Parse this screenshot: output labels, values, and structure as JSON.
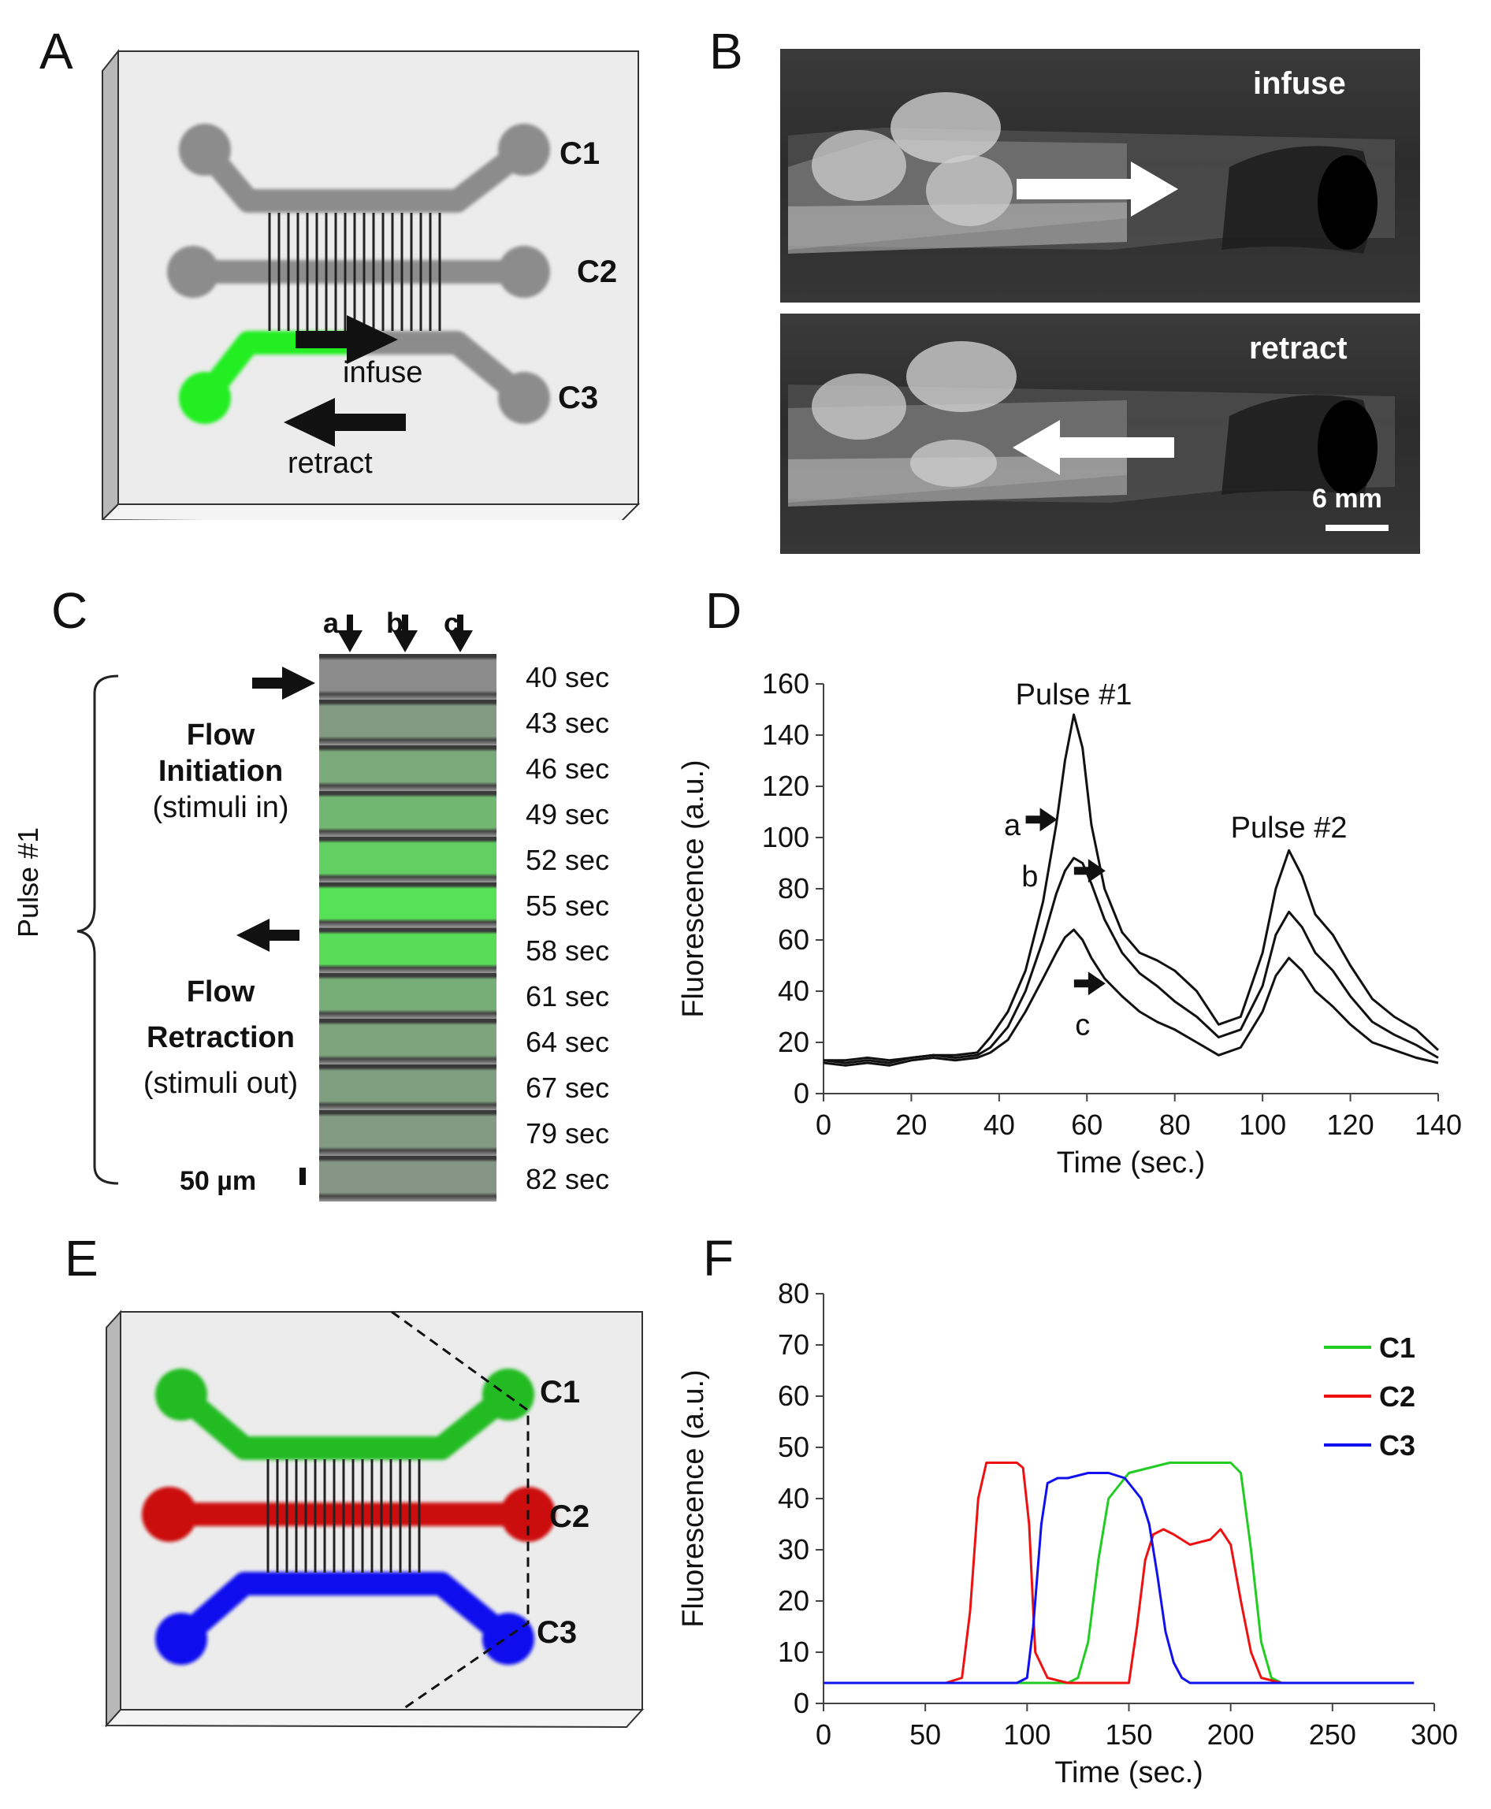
{
  "panels": {
    "A": {
      "letter": "A",
      "channels": [
        "C1",
        "C2",
        "C3"
      ],
      "infuse_label": "infuse",
      "retract_label": "retract",
      "colors": {
        "channel": "#8c8c8c",
        "stimulus": "#22ee22",
        "chip": "#ececec"
      }
    },
    "B": {
      "letter": "B",
      "top_label": "infuse",
      "bottom_label": "retract",
      "scale_label": "6 mm"
    },
    "C": {
      "letter": "C",
      "column_labels": [
        "a",
        "b",
        "c"
      ],
      "pulse_label": "Pulse #1",
      "initiation": {
        "title_line1": "Flow",
        "title_line2": "Initiation",
        "sub": "(stimuli in)"
      },
      "retraction": {
        "title_line1": "Flow",
        "title_line2": "Retraction",
        "sub": "(stimuli out)"
      },
      "scale_label": "50 µm",
      "times": [
        "40 sec",
        "43 sec",
        "46 sec",
        "49 sec",
        "52 sec",
        "55 sec",
        "58 sec",
        "61 sec",
        "64 sec",
        "67 sec",
        "79 sec",
        "82 sec"
      ],
      "green_levels": [
        0.0,
        0.15,
        0.3,
        0.45,
        0.7,
        0.9,
        0.85,
        0.35,
        0.25,
        0.2,
        0.15,
        0.1
      ]
    },
    "D": {
      "letter": "D"
    },
    "E": {
      "letter": "E",
      "channels": [
        "C1",
        "C2",
        "C3"
      ],
      "colors": {
        "C1": "#22bb22",
        "C2": "#cc1111",
        "C3": "#1111ee"
      }
    },
    "F": {
      "letter": "F"
    }
  },
  "chart_data": [
    {
      "id": "D",
      "type": "line",
      "title": "",
      "xlabel": "Time (sec.)",
      "ylabel": "Fluorescence (a.u.)",
      "xlim": [
        0,
        140
      ],
      "ylim": [
        0,
        160
      ],
      "xticks": [
        0,
        20,
        40,
        60,
        80,
        100,
        120,
        140
      ],
      "yticks": [
        0,
        20,
        40,
        60,
        80,
        100,
        120,
        140,
        160
      ],
      "annotations": [
        "Pulse #1",
        "Pulse #2",
        "a",
        "b",
        "c"
      ],
      "series": [
        {
          "name": "a",
          "color": "#111111",
          "x": [
            0,
            5,
            10,
            15,
            20,
            25,
            30,
            35,
            38,
            42,
            46,
            50,
            53,
            55,
            57,
            59,
            61,
            64,
            68,
            72,
            76,
            80,
            85,
            90,
            95,
            100,
            103,
            106,
            109,
            112,
            116,
            120,
            125,
            130,
            135,
            140
          ],
          "y": [
            13,
            13,
            14,
            13,
            14,
            15,
            15,
            16,
            22,
            32,
            48,
            75,
            105,
            130,
            148,
            135,
            105,
            80,
            63,
            55,
            52,
            48,
            40,
            27,
            30,
            55,
            80,
            95,
            85,
            70,
            62,
            50,
            37,
            30,
            25,
            17
          ]
        },
        {
          "name": "b",
          "color": "#111111",
          "x": [
            0,
            5,
            10,
            15,
            20,
            25,
            30,
            35,
            38,
            42,
            46,
            50,
            53,
            55,
            57,
            59,
            61,
            64,
            68,
            72,
            76,
            80,
            85,
            90,
            95,
            100,
            103,
            106,
            109,
            112,
            116,
            120,
            125,
            130,
            135,
            140
          ],
          "y": [
            13,
            12,
            13,
            12,
            14,
            15,
            14,
            15,
            18,
            26,
            40,
            60,
            78,
            87,
            92,
            90,
            82,
            68,
            55,
            47,
            42,
            36,
            30,
            22,
            25,
            42,
            62,
            71,
            65,
            55,
            48,
            38,
            28,
            23,
            19,
            14
          ]
        },
        {
          "name": "c",
          "color": "#111111",
          "x": [
            0,
            5,
            10,
            15,
            20,
            25,
            30,
            35,
            38,
            42,
            46,
            50,
            53,
            55,
            57,
            59,
            61,
            64,
            68,
            72,
            76,
            80,
            85,
            90,
            95,
            100,
            103,
            106,
            109,
            112,
            116,
            120,
            125,
            130,
            135,
            140
          ],
          "y": [
            12,
            11,
            12,
            11,
            13,
            14,
            13,
            14,
            16,
            21,
            32,
            45,
            55,
            61,
            64,
            60,
            53,
            45,
            38,
            32,
            28,
            25,
            20,
            15,
            18,
            32,
            46,
            53,
            48,
            40,
            34,
            27,
            20,
            17,
            14,
            12
          ]
        }
      ]
    },
    {
      "id": "F",
      "type": "line",
      "title": "",
      "xlabel": "Time (sec.)",
      "ylabel": "Fluorescence (a.u.)",
      "xlim": [
        0,
        300
      ],
      "ylim": [
        0,
        80
      ],
      "xticks": [
        0,
        50,
        100,
        150,
        200,
        250,
        300
      ],
      "yticks": [
        0,
        10,
        20,
        30,
        40,
        50,
        60,
        70,
        80
      ],
      "legend": "top-right",
      "series": [
        {
          "name": "C1",
          "color": "#22cc22",
          "x": [
            0,
            100,
            120,
            125,
            130,
            135,
            140,
            150,
            160,
            170,
            180,
            200,
            205,
            210,
            215,
            220,
            225,
            290
          ],
          "y": [
            4,
            4,
            4,
            5,
            12,
            28,
            40,
            45,
            46,
            47,
            47,
            47,
            45,
            30,
            12,
            5,
            4,
            4
          ]
        },
        {
          "name": "C2",
          "color": "#ee1111",
          "x": [
            0,
            60,
            68,
            72,
            76,
            80,
            85,
            90,
            95,
            98,
            101,
            104,
            110,
            120,
            140,
            150,
            154,
            158,
            162,
            167,
            172,
            180,
            190,
            195,
            200,
            205,
            210,
            215,
            225,
            290
          ],
          "y": [
            4,
            4,
            5,
            18,
            40,
            47,
            47,
            47,
            47,
            46,
            35,
            10,
            5,
            4,
            4,
            4,
            15,
            28,
            33,
            34,
            33,
            31,
            32,
            34,
            31,
            20,
            10,
            5,
            4,
            4
          ]
        },
        {
          "name": "C3",
          "color": "#1111ee",
          "x": [
            0,
            95,
            100,
            103,
            107,
            110,
            115,
            120,
            130,
            140,
            148,
            152,
            156,
            160,
            164,
            168,
            172,
            176,
            180,
            290
          ],
          "y": [
            4,
            4,
            5,
            15,
            35,
            43,
            44,
            44,
            45,
            45,
            44,
            42,
            40,
            35,
            25,
            14,
            8,
            5,
            4,
            4
          ]
        }
      ]
    }
  ]
}
